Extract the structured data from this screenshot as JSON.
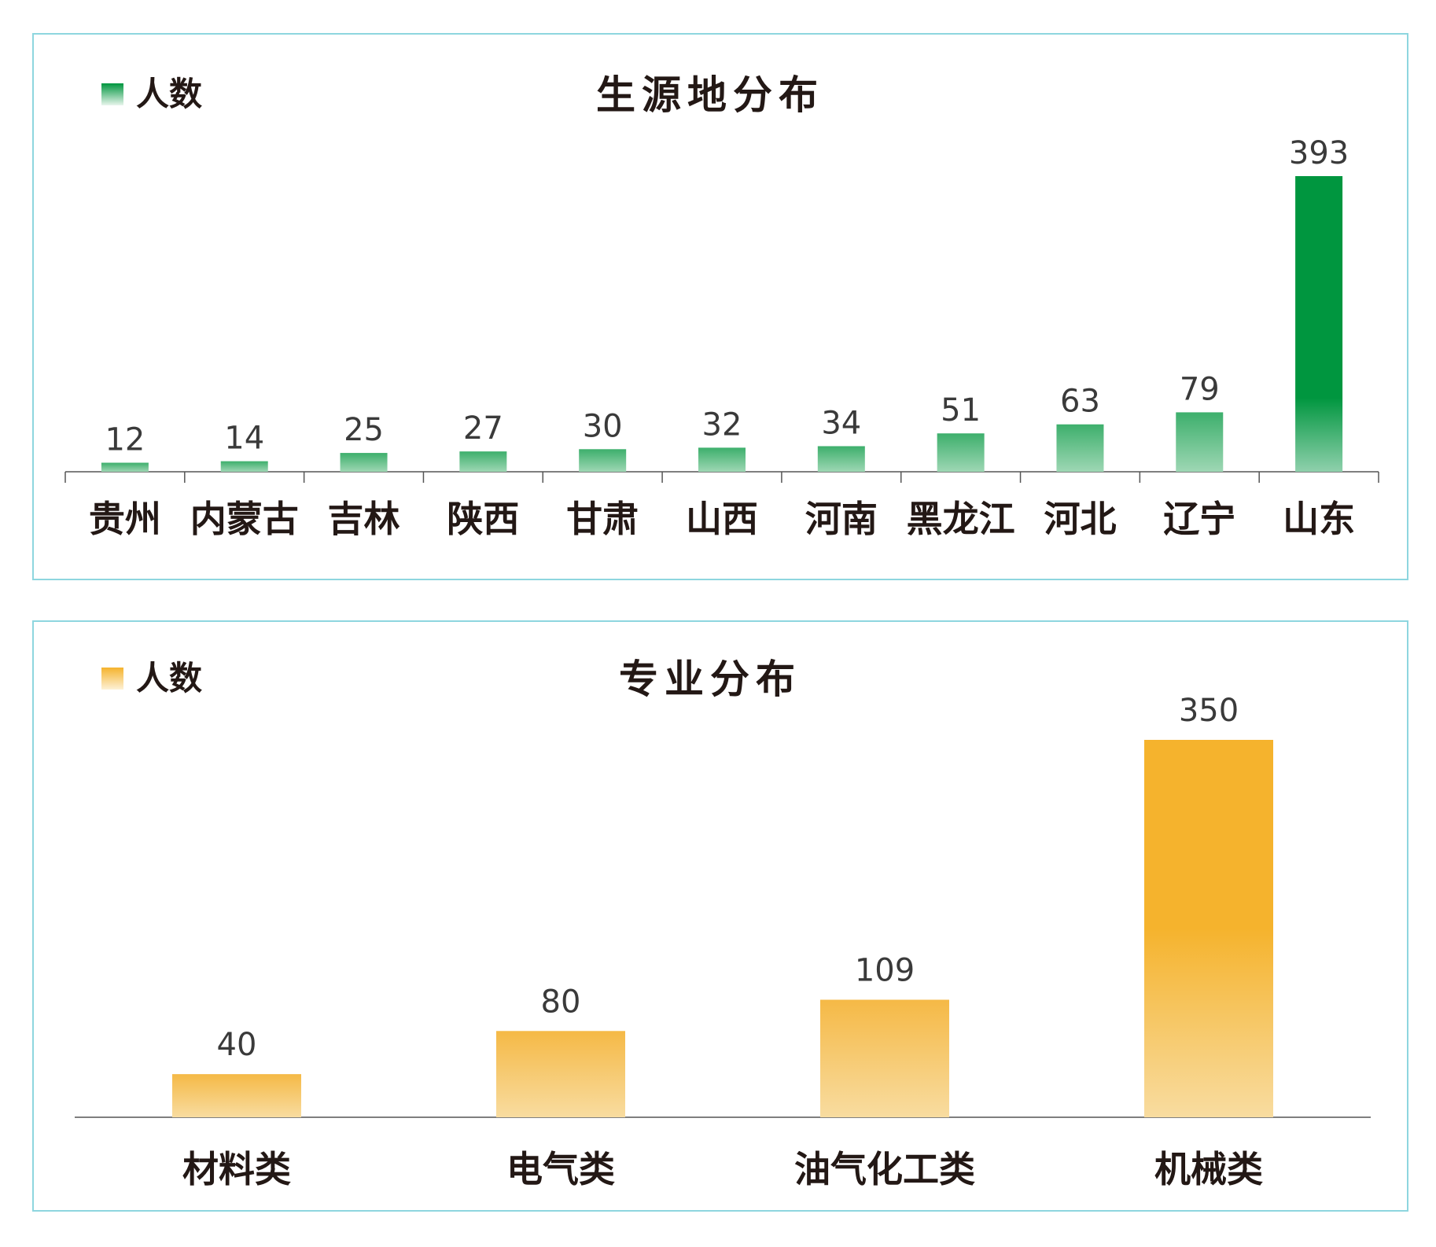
{
  "colors": {
    "green_top": "#00963f",
    "green_bottom": "#8fd0ac",
    "green_small_top": "#5fbf85",
    "green_small_bottom": "#9ed7b4",
    "orange_top": "#f5b32d",
    "orange_bottom": "#f8dca0",
    "axis": "#555555",
    "border": "#8ed6df"
  },
  "chart_data": [
    {
      "type": "bar",
      "title": "生源地分布",
      "legend": {
        "label": "人数",
        "position": "top-left"
      },
      "categories": [
        "贵州",
        "内蒙古",
        "吉林",
        "陕西",
        "甘肃",
        "山西",
        "河南",
        "黑龙江",
        "河北",
        "辽宁",
        "山东"
      ],
      "series": [
        {
          "name": "人数",
          "values": [
            12,
            14,
            25,
            27,
            30,
            32,
            34,
            51,
            63,
            79,
            393
          ]
        }
      ],
      "ylim": [
        0,
        393
      ],
      "grid": false,
      "xlabel": "",
      "ylabel": ""
    },
    {
      "type": "bar",
      "title": "专业分布",
      "legend": {
        "label": "人数",
        "position": "top-left"
      },
      "categories": [
        "材料类",
        "电气类",
        "油气化工类",
        "机械类"
      ],
      "series": [
        {
          "name": "人数",
          "values": [
            40,
            80,
            109,
            350
          ]
        }
      ],
      "ylim": [
        0,
        350
      ],
      "grid": false,
      "xlabel": "",
      "ylabel": ""
    }
  ]
}
